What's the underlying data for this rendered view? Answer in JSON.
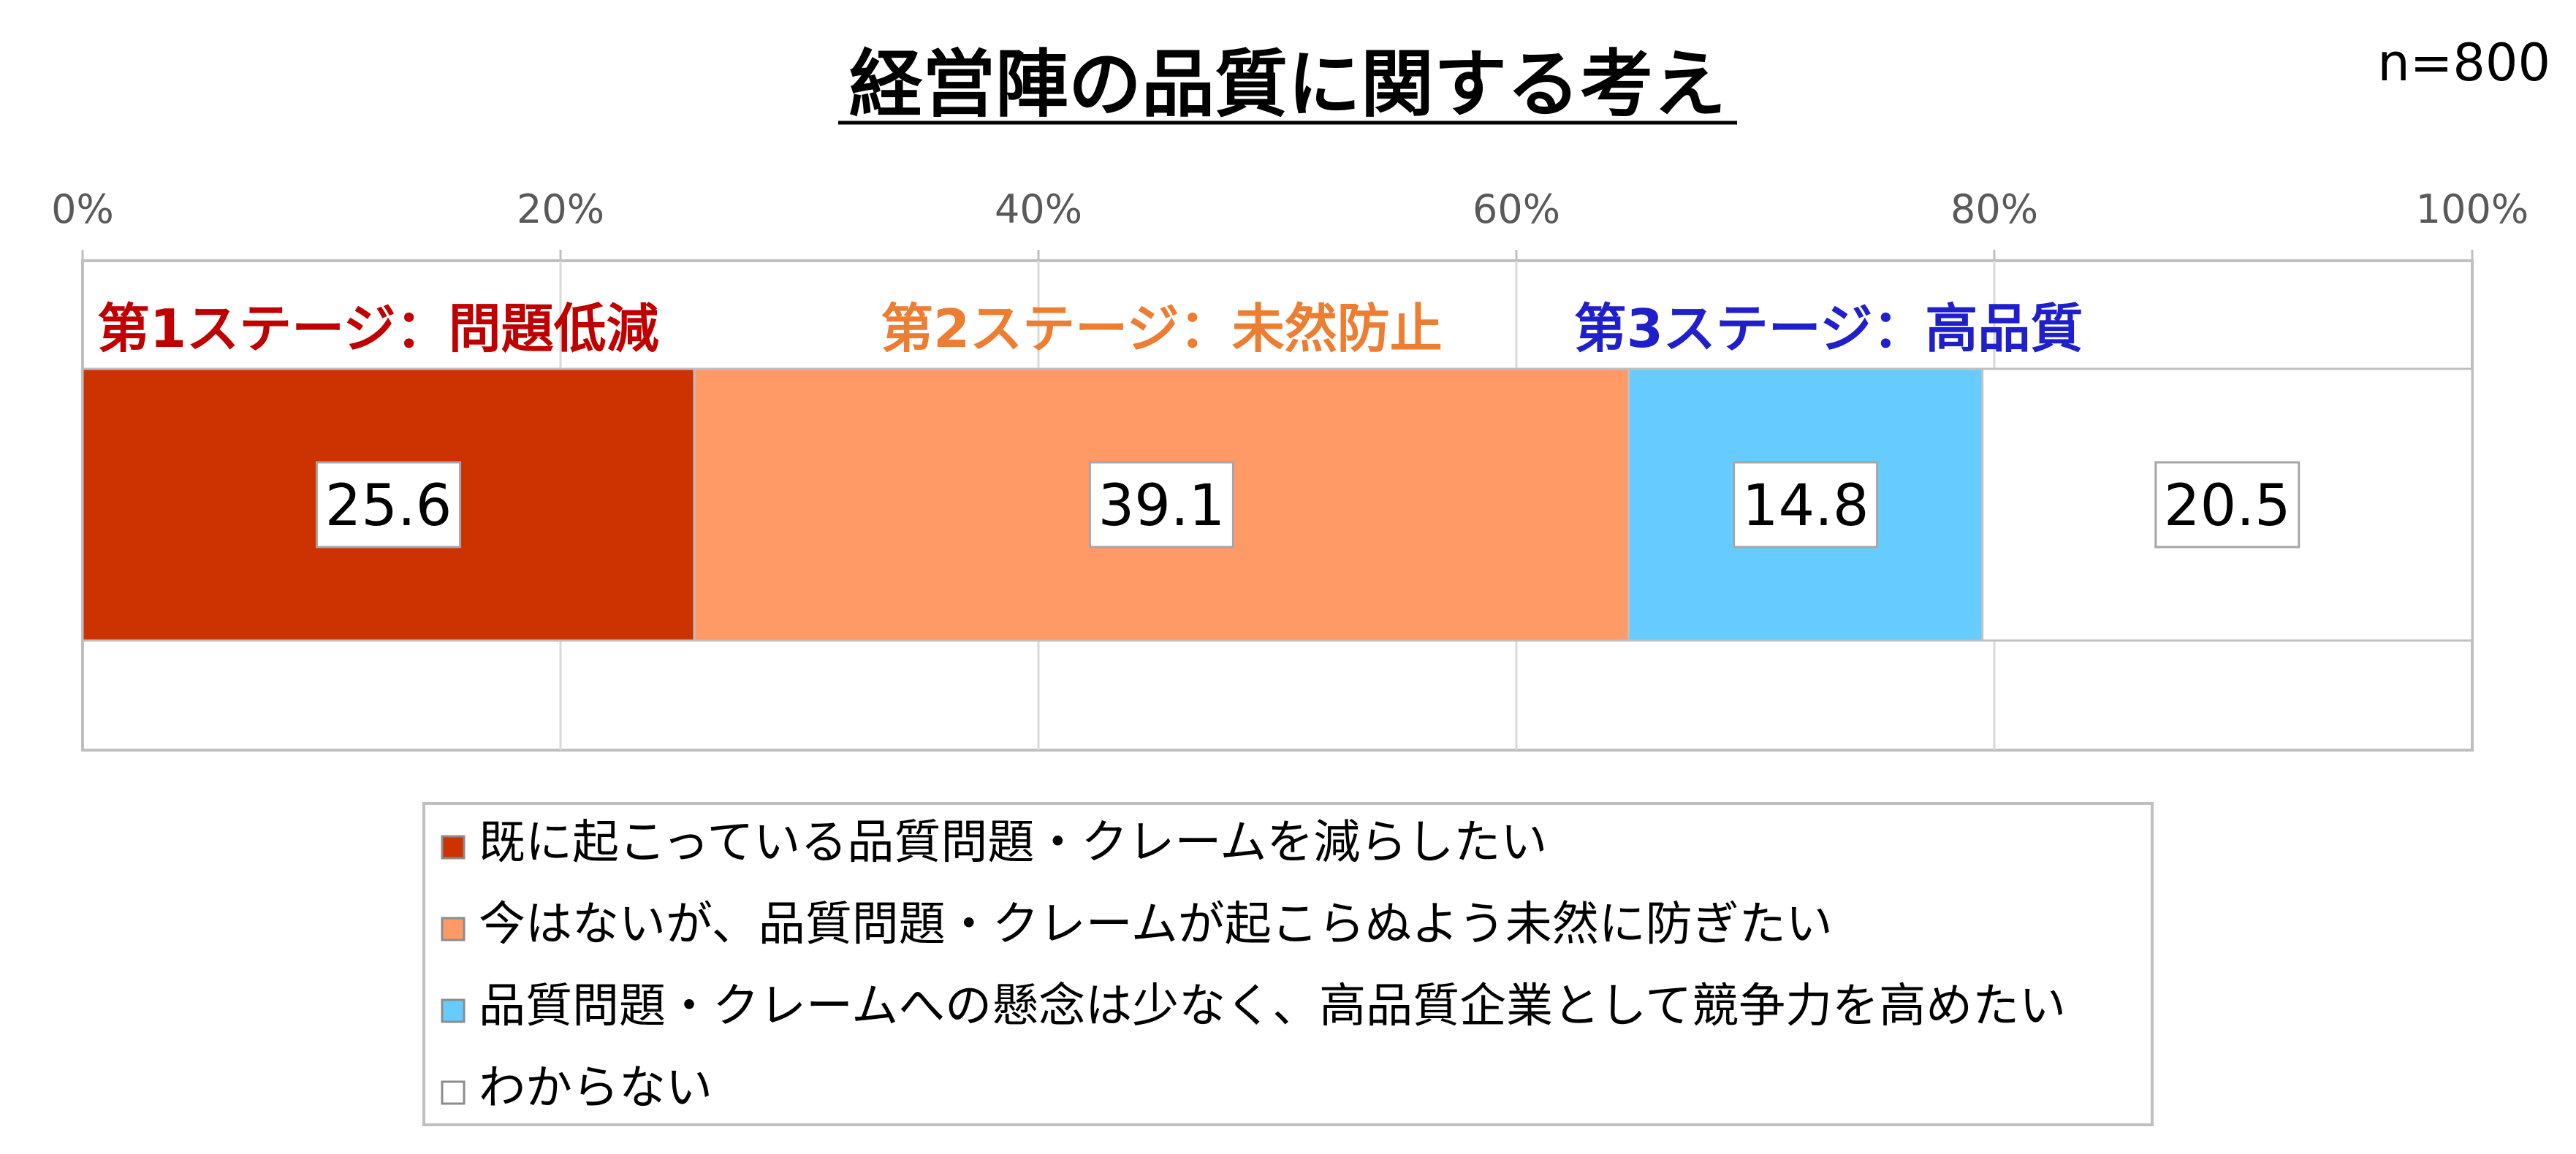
{
  "title": "経営陣の品質に関する考え",
  "sample_size": "n=800",
  "stage_labels": [
    {
      "text": "第1ステージ：問題低減",
      "color": "#C00000"
    },
    {
      "text": "第2ステージ：未然防止",
      "color": "#ED7D31"
    },
    {
      "text": "第3ステージ：高品質",
      "color": "#1F1FCC"
    }
  ],
  "colors": {
    "series1": "#CC3300",
    "series2": "#FF9966",
    "series3": "#66CCFF",
    "series4": "#FFFFFF",
    "border": "#BFBFBF"
  },
  "chart_data": {
    "type": "bar",
    "orientation": "horizontal",
    "stacked": true,
    "percent": true,
    "title": "経営陣の品質に関する考え",
    "x_ticks": [
      "0%",
      "20%",
      "40%",
      "60%",
      "80%",
      "100%"
    ],
    "xlim": [
      0,
      100
    ],
    "grid": true,
    "legend_position": "bottom",
    "series": [
      {
        "name": "既に起こっている品質問題・クレームを減らしたい",
        "value": 25.6,
        "label": "25.6"
      },
      {
        "name": "今はないが、品質問題・クレームが起こらぬよう未然に防ぎたい",
        "value": 39.1,
        "label": "39.1"
      },
      {
        "name": "品質問題・クレームへの懸念は少なく、高品質企業として競争力を高めたい",
        "value": 14.8,
        "label": "14.8"
      },
      {
        "name": "わからない",
        "value": 20.5,
        "label": "20.5"
      }
    ]
  }
}
